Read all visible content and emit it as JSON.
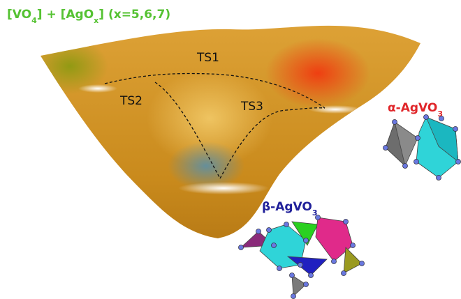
{
  "header": {
    "title": {
      "parts": [
        "[VO",
        "4",
        "] + [AgO",
        "x",
        "] (x=5,6,7)"
      ]
    }
  },
  "landscape": {
    "labels": [
      "TS1",
      "TS2",
      "TS3"
    ]
  },
  "structures": [
    {
      "label": {
        "parts": [
          "α-AgVO",
          "3"
        ]
      }
    },
    {
      "label": {
        "parts": [
          "β-AgVO",
          "3"
        ]
      }
    }
  ]
}
